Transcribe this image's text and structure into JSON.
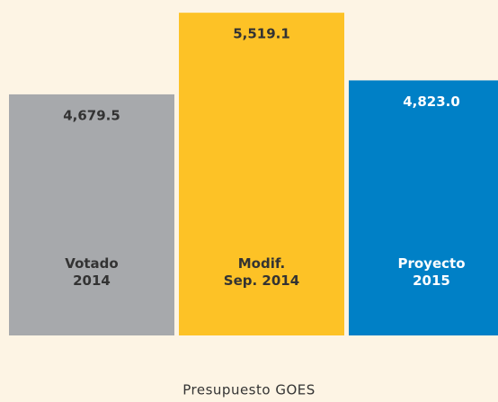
{
  "chart_data": {
    "type": "bar",
    "title": "Presupuesto GOES",
    "categories": [
      "Votado\n2014",
      "Modif.\nSep. 2014",
      "Proyecto\n2015"
    ],
    "values": [
      4679.5,
      5519.1,
      4823.0
    ],
    "value_labels": [
      "4,679.5",
      "5,519.1",
      "4,823.0"
    ],
    "colors": [
      "#a7a9ac",
      "#fdc226",
      "#0080c6"
    ],
    "label_colors": [
      "#333333",
      "#333333",
      "#ffffff"
    ],
    "ylim": [
      2200,
      5650
    ]
  }
}
